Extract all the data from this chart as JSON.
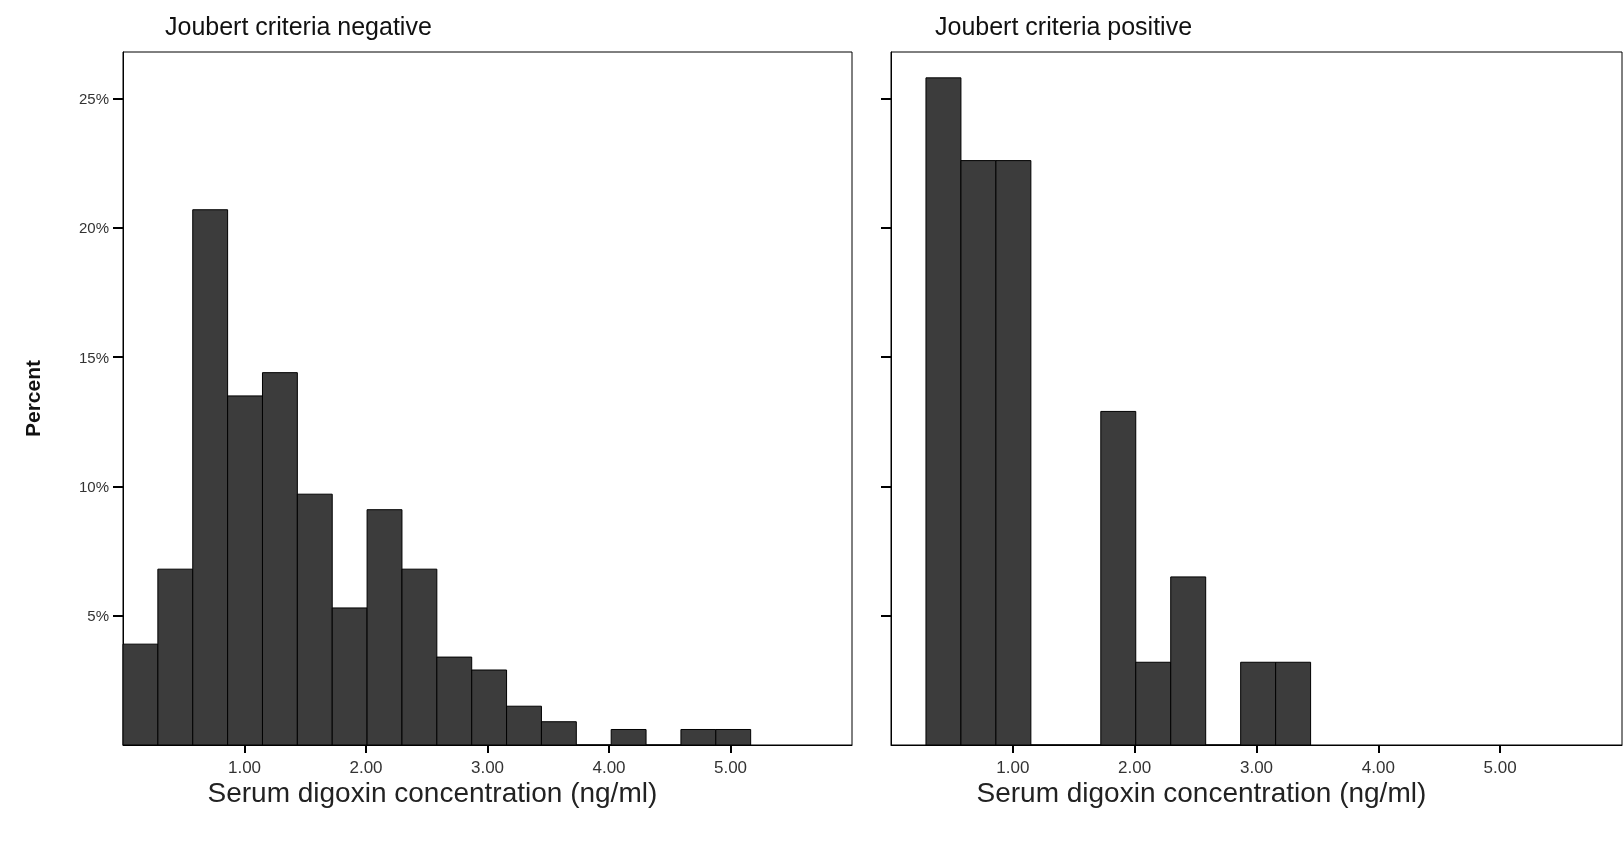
{
  "chart_data": [
    {
      "type": "histogram",
      "title": "Joubert criteria negative",
      "xlabel": "Serum digoxin concentration (ng/ml)",
      "ylabel": "Percent",
      "color": "#3c3c3c",
      "bins": [
        0,
        0.287,
        0.574,
        0.861,
        1.148,
        1.435,
        1.722,
        2.009,
        2.296,
        2.583,
        2.87,
        3.157,
        3.444,
        3.731,
        4.018,
        4.305,
        4.592,
        4.879,
        5.166
      ],
      "values": [
        3.9,
        6.8,
        20.7,
        13.5,
        14.4,
        9.7,
        5.3,
        9.1,
        6.8,
        3.4,
        2.9,
        1.5,
        0.9,
        0,
        0.6,
        0,
        0.6,
        0.6
      ],
      "xlim": [
        0,
        6
      ],
      "xticks": [
        {
          "value": 1,
          "label": "1.00"
        },
        {
          "value": 2,
          "label": "2.00"
        },
        {
          "value": 3,
          "label": "3.00"
        },
        {
          "value": 4,
          "label": "4.00"
        },
        {
          "value": 5,
          "label": "5.00"
        }
      ],
      "ylim": [
        0,
        26.8
      ],
      "yticks": [
        {
          "value": 5,
          "label": "5%"
        },
        {
          "value": 10,
          "label": "10%"
        },
        {
          "value": 15,
          "label": "15%"
        },
        {
          "value": 20,
          "label": "20%"
        },
        {
          "value": 25,
          "label": "25%"
        }
      ]
    },
    {
      "type": "histogram",
      "title": "Joubert criteria positive",
      "xlabel": "Serum digoxin concentration (ng/ml)",
      "color": "#3c3c3c",
      "bins": [
        0.287,
        0.574,
        0.861,
        1.148,
        1.435,
        1.722,
        2.009,
        2.296,
        2.583,
        2.87,
        3.157,
        3.444
      ],
      "values": [
        25.8,
        22.6,
        22.6,
        0,
        0,
        12.9,
        3.2,
        6.5,
        0,
        3.2,
        3.2
      ],
      "xlim": [
        0,
        6
      ],
      "xticks": [
        {
          "value": 1,
          "label": "1.00"
        },
        {
          "value": 2,
          "label": "2.00"
        },
        {
          "value": 3,
          "label": "3.00"
        },
        {
          "value": 4,
          "label": "4.00"
        },
        {
          "value": 5,
          "label": "5.00"
        }
      ],
      "ylim": [
        0,
        26.8
      ],
      "yticks": [
        {
          "value": 5,
          "label": null
        },
        {
          "value": 10,
          "label": null
        },
        {
          "value": 15,
          "label": null
        },
        {
          "value": 20,
          "label": null
        },
        {
          "value": 25,
          "label": null
        }
      ],
      "tick_labels": "x"
    }
  ]
}
